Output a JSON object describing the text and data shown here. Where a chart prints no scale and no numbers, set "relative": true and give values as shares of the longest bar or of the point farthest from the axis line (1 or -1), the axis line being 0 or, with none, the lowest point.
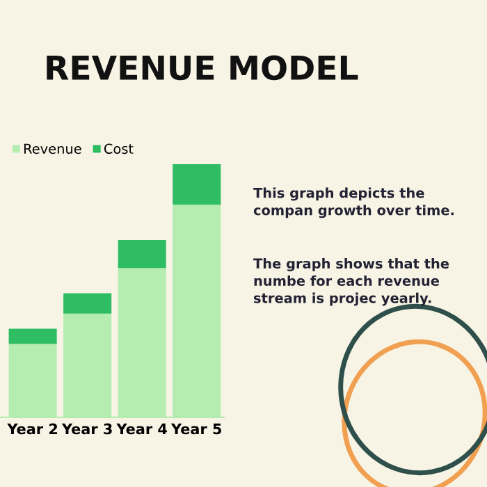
{
  "chart_data": {
    "type": "bar",
    "title": "REVENUE MODEL",
    "stacked": true,
    "relative": true,
    "legend": "top left",
    "categories": [
      "Year 2",
      "Year 3",
      "Year 4",
      "Year 5"
    ],
    "series": [
      {
        "name": "Revenue",
        "color": "#b5ecb0",
        "values": [
          0.29,
          0.41,
          0.59,
          0.84
        ]
      },
      {
        "name": "Cost",
        "color": "#2ebd62",
        "values": [
          0.06,
          0.08,
          0.11,
          0.16
        ]
      }
    ],
    "annotations": [
      "This graph depicts the compan growth over time.",
      "The graph shows that the numbe for each revenue stream is projec yearly."
    ]
  }
}
